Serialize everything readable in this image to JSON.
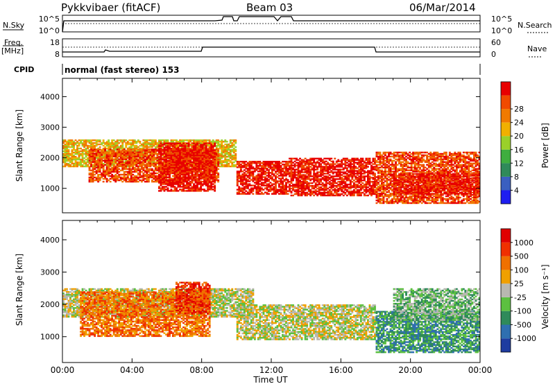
{
  "header": {
    "site": "Pykkvibaer (fitACF)",
    "beam": "Beam 03",
    "date": "06/Mar/2014"
  },
  "noise_panel": {
    "left_label": "N.Sky",
    "ticks": [
      "10^5",
      "10^0"
    ],
    "right_ticks": [
      "10^5",
      "10^0"
    ],
    "right_label": "N.Search"
  },
  "freq_panel": {
    "left_label_1": "Freq.",
    "left_label_2": "[MHz]",
    "ticks": [
      "18",
      "8"
    ],
    "right_ticks": [
      "60",
      "0"
    ],
    "right_label": "Nave"
  },
  "cpid_panel": {
    "label": "CPID",
    "text": "normal (fast stereo) 153"
  },
  "chart_data": [
    {
      "type": "heatmap",
      "name": "power",
      "ylabel": "Slant Range [km]",
      "xlabel": "",
      "yticks": [
        "1000",
        "2000",
        "3000",
        "4000"
      ],
      "ylim": [
        200,
        4600
      ],
      "xlim_hours": [
        0,
        24
      ],
      "colorbar": {
        "label": "Power [dB]",
        "ticks": [
          "4",
          "8",
          "12",
          "16",
          "20",
          "24",
          "28"
        ],
        "colors": [
          "#1e1ef0",
          "#3a5fc0",
          "#2f8a5a",
          "#3fae3f",
          "#9ad02a",
          "#f0b000",
          "#f07a00",
          "#f04a00",
          "#e80000"
        ]
      },
      "bands": [
        {
          "t0": 0.0,
          "t1": 10.0,
          "r0": 1700,
          "r1": 2600,
          "level": 5
        },
        {
          "t0": 1.5,
          "t1": 9.0,
          "r0": 1200,
          "r1": 2300,
          "level": 7
        },
        {
          "t0": 5.5,
          "t1": 8.8,
          "r0": 900,
          "r1": 2500,
          "level": 8
        },
        {
          "t0": 10.0,
          "t1": 13.0,
          "r0": 800,
          "r1": 1900,
          "level": 8
        },
        {
          "t0": 13.0,
          "t1": 18.0,
          "r0": 750,
          "r1": 2000,
          "level": 8
        },
        {
          "t0": 18.0,
          "t1": 24.0,
          "r0": 500,
          "r1": 2200,
          "level": 7
        },
        {
          "t0": 19.0,
          "t1": 24.0,
          "r0": 800,
          "r1": 1500,
          "level": 8
        }
      ]
    },
    {
      "type": "heatmap",
      "name": "velocity",
      "ylabel": "Slant Range [km]",
      "xlabel": "Time UT",
      "yticks": [
        "1000",
        "2000",
        "3000",
        "4000"
      ],
      "xticks": [
        "00:00",
        "04:00",
        "08:00",
        "12:00",
        "16:00",
        "20:00",
        "00:00"
      ],
      "ylim": [
        200,
        4600
      ],
      "xlim_hours": [
        0,
        24
      ],
      "colorbar": {
        "label": "Velocity [m s⁻¹]",
        "ticks": [
          "1000",
          "500",
          "100",
          "25",
          "-25",
          "-100",
          "-500",
          "-1000"
        ],
        "colors": [
          "#1e3ca0",
          "#2f6fb0",
          "#2f8a5a",
          "#5cc040",
          "#b8b8b0",
          "#f0a000",
          "#f07000",
          "#f03000",
          "#e00000"
        ]
      },
      "bands": [
        {
          "t0": 0.0,
          "t1": 11.0,
          "r0": 1600,
          "r1": 2500,
          "level": 4
        },
        {
          "t0": 1.0,
          "t1": 8.5,
          "r0": 1000,
          "r1": 2400,
          "level": 6
        },
        {
          "t0": 6.5,
          "t1": 8.5,
          "r0": 1700,
          "r1": 2700,
          "level": 7
        },
        {
          "t0": 10.0,
          "t1": 18.0,
          "r0": 900,
          "r1": 2000,
          "level": 4
        },
        {
          "t0": 18.0,
          "t1": 24.0,
          "r0": 500,
          "r1": 1800,
          "level": 2
        },
        {
          "t0": 19.0,
          "t1": 24.0,
          "r0": 1500,
          "r1": 2500,
          "level": 3
        }
      ]
    }
  ]
}
